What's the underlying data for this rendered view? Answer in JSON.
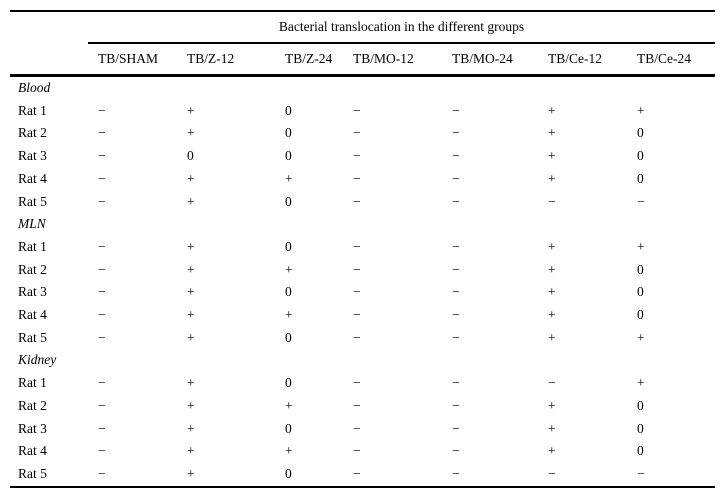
{
  "page": {
    "background": "#ffffff",
    "text_color": "#000000",
    "rule_color": "#000000"
  },
  "table": {
    "spanning_header": "Bacterial translocation in the different groups",
    "columns": [
      "TB/SHAM",
      "TB/Z-12",
      "TB/Z-24",
      "TB/MO-12",
      "TB/MO-24",
      "TB/Ce-12",
      "TB/Ce-24"
    ],
    "cell_symbols": [
      "−",
      "+",
      "0"
    ],
    "sections": [
      {
        "label": "Blood",
        "rows": [
          {
            "label": "Rat 1",
            "values": [
              "−",
              "+",
              "0",
              "−",
              "−",
              "+",
              "+"
            ]
          },
          {
            "label": "Rat 2",
            "values": [
              "−",
              "+",
              "0",
              "−",
              "−",
              "+",
              "0"
            ]
          },
          {
            "label": "Rat 3",
            "values": [
              "−",
              "0",
              "0",
              "−",
              "−",
              "+",
              "0"
            ]
          },
          {
            "label": "Rat 4",
            "values": [
              "−",
              "+",
              "+",
              "−",
              "−",
              "+",
              "0"
            ]
          },
          {
            "label": "Rat 5",
            "values": [
              "−",
              "+",
              "0",
              "−",
              "−",
              "−",
              "−"
            ]
          }
        ]
      },
      {
        "label": "MLN",
        "rows": [
          {
            "label": "Rat 1",
            "values": [
              "−",
              "+",
              "0",
              "−",
              "−",
              "+",
              "+"
            ]
          },
          {
            "label": "Rat 2",
            "values": [
              "−",
              "+",
              "+",
              "−",
              "−",
              "+",
              "0"
            ]
          },
          {
            "label": "Rat 3",
            "values": [
              "−",
              "+",
              "0",
              "−",
              "−",
              "+",
              "0"
            ]
          },
          {
            "label": "Rat 4",
            "values": [
              "−",
              "+",
              "+",
              "−",
              "−",
              "+",
              "0"
            ]
          },
          {
            "label": "Rat 5",
            "values": [
              "−",
              "+",
              "0",
              "−",
              "−",
              "+",
              "+"
            ]
          }
        ]
      },
      {
        "label": "Kidney",
        "rows": [
          {
            "label": "Rat 1",
            "values": [
              "−",
              "+",
              "0",
              "−",
              "−",
              "−",
              "+"
            ]
          },
          {
            "label": "Rat 2",
            "values": [
              "−",
              "+",
              "+",
              "−",
              "−",
              "+",
              "0"
            ]
          },
          {
            "label": "Rat 3",
            "values": [
              "−",
              "+",
              "0",
              "−",
              "−",
              "+",
              "0"
            ]
          },
          {
            "label": "Rat 4",
            "values": [
              "−",
              "+",
              "+",
              "−",
              "−",
              "+",
              "0"
            ]
          },
          {
            "label": "Rat 5",
            "values": [
              "−",
              "+",
              "0",
              "−",
              "−",
              "−",
              "−"
            ]
          }
        ]
      }
    ]
  }
}
